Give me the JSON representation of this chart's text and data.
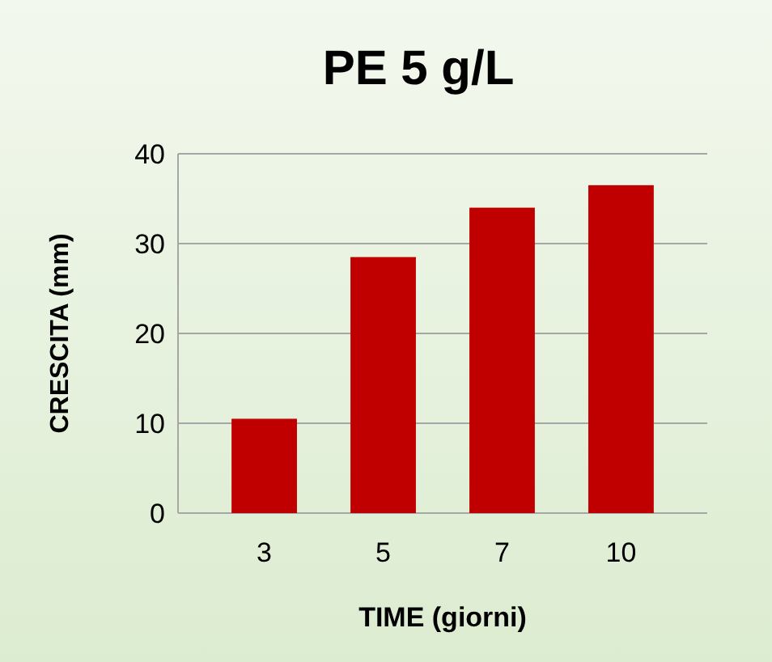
{
  "chart_data": {
    "type": "bar",
    "title": "PE 5 g/L",
    "xlabel": "TIME (giorni)",
    "ylabel": "CRESCITA (mm)",
    "categories": [
      "3",
      "5",
      "7",
      "10"
    ],
    "values": [
      10.5,
      28.5,
      34,
      36.5
    ],
    "color": "#c00000",
    "ylim": [
      0,
      40
    ],
    "yticks": [
      0,
      10,
      20,
      30,
      40
    ],
    "grid": "y"
  }
}
